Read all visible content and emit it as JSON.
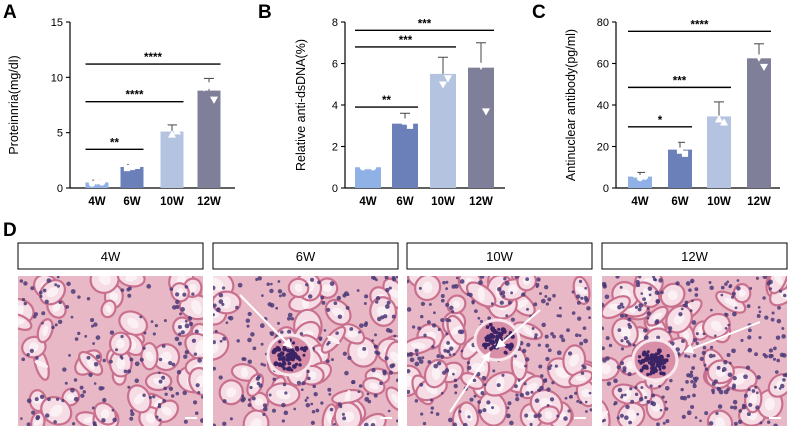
{
  "panels": [
    {
      "letter": "A"
    },
    {
      "letter": "B"
    },
    {
      "letter": "C"
    },
    {
      "letter": "D"
    }
  ],
  "colors": {
    "bars": [
      "#8fb1e6",
      "#6b80b8",
      "#b4c3e0",
      "#7f7f9a"
    ],
    "axis": "#000000",
    "tissue_bg": "#f2d4dc",
    "nucleus": "#4a3878"
  },
  "chart_data": [
    {
      "type": "bar",
      "title": "",
      "xlabel": "",
      "ylabel": "Proteinnria(mg/dl)",
      "categories": [
        "4W",
        "6W",
        "10W",
        "12W"
      ],
      "values": [
        0.5,
        1.9,
        5.1,
        8.8
      ],
      "errors": [
        0.2,
        0.2,
        0.6,
        1.1
      ],
      "points": [
        [
          0.4,
          0.6,
          0.5
        ],
        [
          1.8,
          1.9,
          2.0
        ],
        [
          5.4,
          4.8,
          5.1
        ],
        [
          9.1,
          9.3,
          8.0
        ]
      ],
      "ylim": [
        0,
        15
      ],
      "yticks": [
        "0",
        "5",
        "10",
        "15"
      ],
      "ytick_values": [
        0,
        5,
        10,
        15
      ],
      "significance": [
        {
          "from": 0,
          "to": 1,
          "label": "**",
          "y": 3.5
        },
        {
          "from": 0,
          "to": 2,
          "label": "****",
          "y": 7.8
        },
        {
          "from": 0,
          "to": 3,
          "label": "****",
          "y": 11.2
        }
      ]
    },
    {
      "type": "bar",
      "title": "",
      "xlabel": "",
      "ylabel": "Relative anti-dsDNA(%)",
      "categories": [
        "4W",
        "6W",
        "10W",
        "12W"
      ],
      "values": [
        1.0,
        3.1,
        5.5,
        5.8
      ],
      "errors": [
        0.05,
        0.5,
        0.8,
        1.2
      ],
      "points": [
        [
          1.0,
          1.05,
          1.0
        ],
        [
          3.4,
          3.2,
          3.0
        ],
        [
          5.8,
          5.0,
          5.3
        ],
        [
          6.2,
          5.9,
          3.7
        ]
      ],
      "ylim": [
        0,
        8
      ],
      "yticks": [
        "0",
        "2",
        "4",
        "6",
        "8"
      ],
      "ytick_values": [
        0,
        2,
        4,
        6,
        8
      ],
      "significance": [
        {
          "from": 0,
          "to": 1,
          "label": "**",
          "y": 3.9
        },
        {
          "from": 0,
          "to": 2,
          "label": "***",
          "y": 6.8
        },
        {
          "from": 0,
          "to": 3,
          "label": "***",
          "y": 7.6
        }
      ]
    },
    {
      "type": "bar",
      "title": "",
      "xlabel": "",
      "ylabel": "Antinuclear antibody(pg/ml)",
      "categories": [
        "4W",
        "6W",
        "10W",
        "12W"
      ],
      "values": [
        5.5,
        18.5,
        34.5,
        62.5
      ],
      "errors": [
        2.0,
        3.5,
        7.0,
        7.0
      ],
      "points": [
        [
          6.5,
          4.8,
          5.5
        ],
        [
          21.0,
          18.0,
          16.5
        ],
        [
          38.5,
          33.0,
          31.5
        ],
        [
          67.0,
          63.0,
          58.5
        ]
      ],
      "ylim": [
        0,
        80
      ],
      "yticks": [
        "0",
        "20",
        "40",
        "60",
        "80"
      ],
      "ytick_values": [
        0,
        20,
        40,
        60,
        80
      ],
      "significance": [
        {
          "from": 0,
          "to": 1,
          "label": "*",
          "y": 29.5
        },
        {
          "from": 0,
          "to": 2,
          "label": "***",
          "y": 48.5
        },
        {
          "from": 0,
          "to": 3,
          "label": "****",
          "y": 75.5
        }
      ]
    }
  ],
  "micrographs": [
    {
      "label": "4W"
    },
    {
      "label": "6W"
    },
    {
      "label": "10W"
    },
    {
      "label": "12W"
    }
  ]
}
